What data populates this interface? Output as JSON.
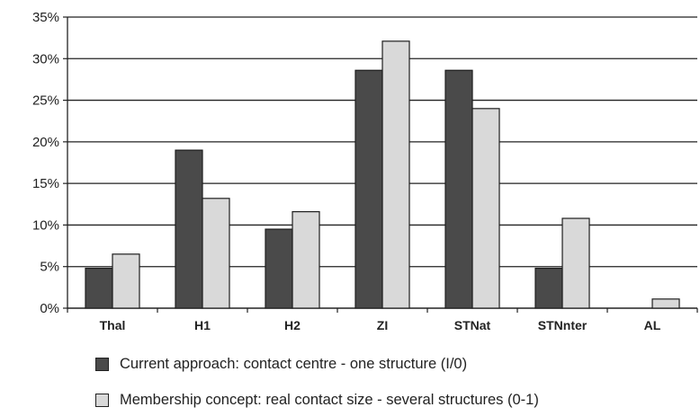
{
  "chart_data": {
    "type": "bar",
    "categories": [
      "Thal",
      "H1",
      "H2",
      "ZI",
      "STNat",
      "STNnter",
      "AL"
    ],
    "series": [
      {
        "name": "Current approach: contact centre - one structure (I/0)",
        "values": [
          4.8,
          19.0,
          9.5,
          28.6,
          28.6,
          4.8,
          0.0
        ],
        "color": "#4a4a4a"
      },
      {
        "name": "Membership concept: real contact size - several structures (0-1)",
        "values": [
          6.5,
          13.2,
          11.6,
          32.1,
          24.0,
          10.8,
          1.1
        ],
        "color": "#d9d9d9"
      }
    ],
    "y_ticks": [
      "0%",
      "5%",
      "10%",
      "15%",
      "20%",
      "25%",
      "30%",
      "35%"
    ],
    "ylim": [
      0,
      35
    ],
    "y_unit": "%",
    "grid": true,
    "legend_position": "bottom",
    "title": "",
    "xlabel": "",
    "ylabel": ""
  }
}
